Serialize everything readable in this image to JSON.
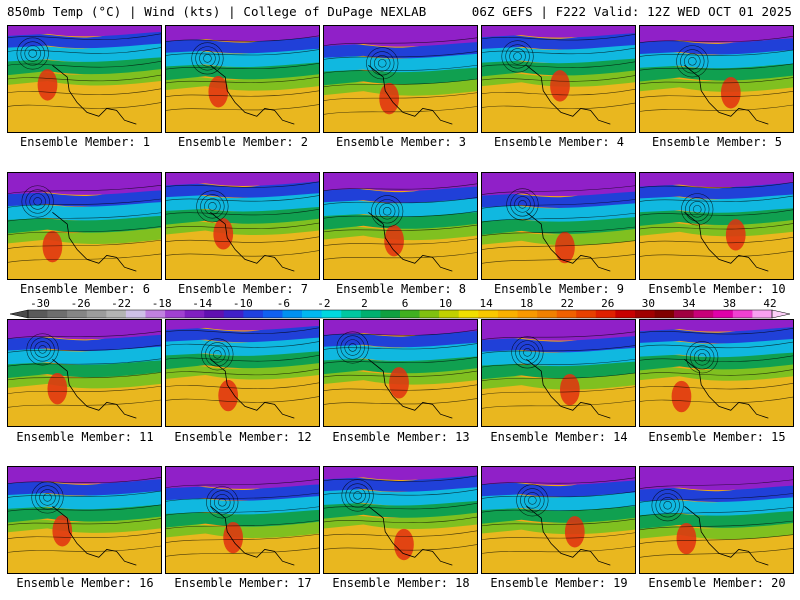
{
  "header": {
    "left_title": "850mb Temp (°C) | Wind (kts) | College of DuPage NEXLAB",
    "right_title": "06Z GEFS | F222 Valid: 12Z WED OCT 01 2025"
  },
  "members": [
    {
      "label": "Ensemble Member: 1"
    },
    {
      "label": "Ensemble Member: 2"
    },
    {
      "label": "Ensemble Member: 3"
    },
    {
      "label": "Ensemble Member: 4"
    },
    {
      "label": "Ensemble Member: 5"
    },
    {
      "label": "Ensemble Member: 6"
    },
    {
      "label": "Ensemble Member: 7"
    },
    {
      "label": "Ensemble Member: 8"
    },
    {
      "label": "Ensemble Member: 9"
    },
    {
      "label": "Ensemble Member: 10"
    },
    {
      "label": "Ensemble Member: 11"
    },
    {
      "label": "Ensemble Member: 12"
    },
    {
      "label": "Ensemble Member: 13"
    },
    {
      "label": "Ensemble Member: 14"
    },
    {
      "label": "Ensemble Member: 15"
    },
    {
      "label": "Ensemble Member: 16"
    },
    {
      "label": "Ensemble Member: 17"
    },
    {
      "label": "Ensemble Member: 18"
    },
    {
      "label": "Ensemble Member: 19"
    },
    {
      "label": "Ensemble Member: 20"
    }
  ],
  "colorbar": {
    "tick_labels": [
      "-30",
      "-26",
      "-22",
      "-18",
      "-14",
      "-10",
      "-6",
      "-2",
      "2",
      "6",
      "10",
      "14",
      "18",
      "22",
      "26",
      "30",
      "34",
      "38",
      "42"
    ],
    "colors": [
      "#5a5a5a",
      "#6e6e6e",
      "#858585",
      "#9c9c9c",
      "#b4b4b4",
      "#cfc0e8",
      "#c080e0",
      "#a040d0",
      "#8020c0",
      "#6010b0",
      "#4020c8",
      "#2040e0",
      "#1060f0",
      "#0090f0",
      "#00b8f0",
      "#00d8e0",
      "#00c8a0",
      "#00b070",
      "#10a040",
      "#40b020",
      "#80c010",
      "#c0d000",
      "#f0e000",
      "#f8c800",
      "#f8b000",
      "#f89800",
      "#f08000",
      "#f06000",
      "#e84000",
      "#e02000",
      "#c80000",
      "#a00000",
      "#800000",
      "#a00040",
      "#c80078",
      "#e000a8",
      "#f040d0",
      "#f8a0f0"
    ]
  }
}
